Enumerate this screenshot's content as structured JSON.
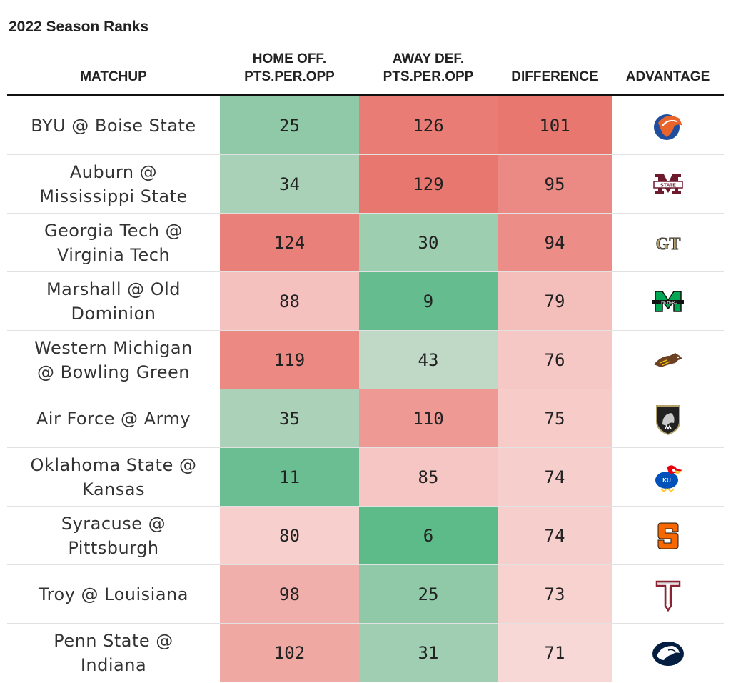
{
  "title": "2022 Season Ranks",
  "columns": {
    "matchup": "MATCHUP",
    "home_off_line1": "HOME OFF.",
    "home_off_line2": "PTS.PER.OPP",
    "away_def_line1": "AWAY DEF.",
    "away_def_line2": "PTS.PER.OPP",
    "difference": "DIFFERENCE",
    "advantage": "ADVANTAGE"
  },
  "rows": [
    {
      "line1": "BYU @ Boise State",
      "line2": "",
      "home_off": "25",
      "away_def": "126",
      "diff": "101",
      "logo": "boise-state-bronco-logo-icon"
    },
    {
      "line1": "Auburn @",
      "line2": "Mississippi State",
      "home_off": "34",
      "away_def": "129",
      "diff": "95",
      "logo": "mississippi-state-logo-icon"
    },
    {
      "line1": "Georgia Tech @",
      "line2": "Virginia Tech",
      "home_off": "124",
      "away_def": "30",
      "diff": "94",
      "logo": "georgia-tech-gt-logo-icon"
    },
    {
      "line1": "Marshall @ Old",
      "line2": "Dominion",
      "home_off": "88",
      "away_def": "9",
      "diff": "79",
      "logo": "marshall-herd-logo-icon"
    },
    {
      "line1": "Western Michigan",
      "line2": "@ Bowling Green",
      "home_off": "119",
      "away_def": "43",
      "diff": "76",
      "logo": "western-michigan-bronco-logo-icon"
    },
    {
      "line1": "Air Force @ Army",
      "line2": "",
      "home_off": "35",
      "away_def": "110",
      "diff": "75",
      "logo": "army-knight-shield-logo-icon"
    },
    {
      "line1": "Oklahoma State @",
      "line2": "Kansas",
      "home_off": "11",
      "away_def": "85",
      "diff": "74",
      "logo": "kansas-jayhawk-logo-icon"
    },
    {
      "line1": "Syracuse @",
      "line2": "Pittsburgh",
      "home_off": "80",
      "away_def": "6",
      "diff": "74",
      "logo": "syracuse-s-logo-icon"
    },
    {
      "line1": "Troy @ Louisiana",
      "line2": "",
      "home_off": "98",
      "away_def": "25",
      "diff": "73",
      "logo": "troy-trojans-logo-icon"
    },
    {
      "line1": "Penn State @",
      "line2": "Indiana",
      "home_off": "102",
      "away_def": "31",
      "diff": "71",
      "logo": "penn-state-nittany-lion-logo-icon"
    }
  ],
  "colors": {
    "green_strong": "#5dba89",
    "red_strong": "#e8776f",
    "light": "#fbeaea"
  },
  "chart_data": {
    "type": "table",
    "title": "2022 Season Ranks",
    "columns": [
      "MATCHUP",
      "HOME OFF. PTS.PER.OPP",
      "AWAY DEF. PTS.PER.OPP",
      "DIFFERENCE",
      "ADVANTAGE"
    ],
    "matchups": [
      "BYU @ Boise State",
      "Auburn @ Mississippi State",
      "Georgia Tech @ Virginia Tech",
      "Marshall @ Old Dominion",
      "Western Michigan @ Bowling Green",
      "Air Force @ Army",
      "Oklahoma State @ Kansas",
      "Syracuse @ Pittsburgh",
      "Troy @ Louisiana",
      "Penn State @ Indiana"
    ],
    "home_off_pts_per_opp": [
      25,
      34,
      124,
      88,
      119,
      35,
      11,
      80,
      98,
      102
    ],
    "away_def_pts_per_opp": [
      126,
      129,
      30,
      9,
      43,
      110,
      85,
      6,
      25,
      31
    ],
    "difference": [
      101,
      95,
      94,
      79,
      76,
      75,
      74,
      74,
      73,
      71
    ]
  }
}
